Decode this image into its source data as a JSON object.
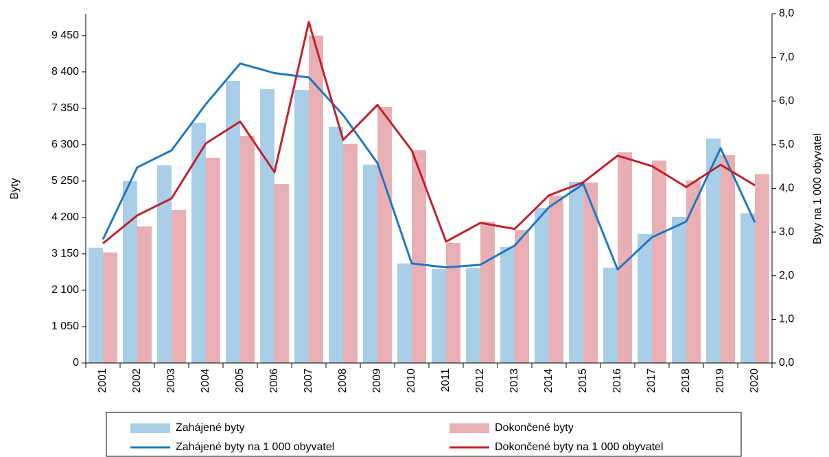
{
  "chart_data": {
    "type": "bar_line",
    "categories": [
      "2001",
      "2002",
      "2003",
      "2004",
      "2005",
      "2006",
      "2007",
      "2008",
      "2009",
      "2010",
      "2011",
      "2012",
      "2013",
      "2014",
      "2015",
      "2016",
      "2017",
      "2018",
      "2019",
      "2020"
    ],
    "series": [
      {
        "name": "Zahájené byty",
        "type": "bar",
        "color": "#a9cfe8",
        "values": [
          3328,
          5250,
          5705,
          6934,
          8142,
          7905,
          7884,
          6815,
          5725,
          2872,
          2714,
          2734,
          3348,
          4477,
          5230,
          2754,
          3724,
          4220,
          6478,
          4319
        ]
      },
      {
        "name": "Dokončené byty",
        "type": "bar",
        "color": "#e8b0b5",
        "values": [
          3190,
          3942,
          4418,
          5923,
          6557,
          5170,
          9450,
          6319,
          7389,
          6141,
          3467,
          4081,
          3843,
          4834,
          5210,
          6082,
          5844,
          5269,
          6003,
          5448
        ]
      },
      {
        "name": "Zahájené byty na 1 000 obyvatel",
        "type": "line",
        "axis": "y2",
        "color": "#1f77c0",
        "values": [
          2.83,
          4.48,
          4.87,
          5.93,
          6.86,
          6.64,
          6.54,
          5.68,
          4.58,
          2.28,
          2.19,
          2.25,
          2.69,
          3.57,
          4.1,
          2.14,
          2.88,
          3.24,
          4.92,
          3.22
        ]
      },
      {
        "name": "Dokončené byty na 1 000 obyvatel",
        "type": "line",
        "axis": "y2",
        "color": "#c0202a",
        "values": [
          2.74,
          3.38,
          3.77,
          5.03,
          5.53,
          4.37,
          7.81,
          5.11,
          5.91,
          4.87,
          2.78,
          3.21,
          3.07,
          3.84,
          4.14,
          4.75,
          4.51,
          4.03,
          4.54,
          4.07
        ]
      }
    ],
    "ylabel": "Byty",
    "y2label": "Byty na 1 000 obyvatel",
    "ylim": [
      0,
      10080
    ],
    "yticks": [
      0,
      {
        "value": 1050,
        "label": "1 050"
      },
      {
        "value": 2100,
        "label": "2 100"
      },
      {
        "value": 3150,
        "label": "3 150"
      },
      {
        "value": 4200,
        "label": "4 200"
      },
      {
        "value": 5250,
        "label": "5 250"
      },
      {
        "value": 6300,
        "label": "6 300"
      },
      {
        "value": 7350,
        "label": "7 350"
      },
      {
        "value": 8400,
        "label": "8 400"
      },
      {
        "value": 9450,
        "label": "9 450"
      }
    ],
    "y2lim": [
      0,
      8
    ],
    "y2ticks": [
      {
        "value": 0,
        "label": "0,0"
      },
      {
        "value": 1,
        "label": "1,0"
      },
      {
        "value": 2,
        "label": "2,0"
      },
      {
        "value": 3,
        "label": "3,0"
      },
      {
        "value": 4,
        "label": "4,0"
      },
      {
        "value": 5,
        "label": "5,0"
      },
      {
        "value": 6,
        "label": "6,0"
      },
      {
        "value": 7,
        "label": "7,0"
      },
      {
        "value": 8,
        "label": "8,0"
      }
    ],
    "legend": "bottom"
  }
}
